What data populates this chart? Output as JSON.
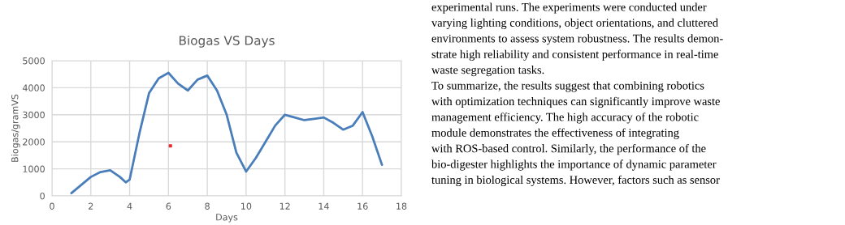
{
  "chart_data": {
    "type": "line",
    "title": "Biogas VS Days",
    "xlabel": "Days",
    "ylabel": "Biogas/gramVS",
    "x": [
      1,
      1.5,
      2,
      2.5,
      3,
      3.5,
      3.8,
      4,
      4.5,
      5,
      5.5,
      6,
      6.5,
      7,
      7.5,
      8,
      8.5,
      9,
      9.5,
      10,
      10.5,
      11,
      11.5,
      12,
      12.5,
      13,
      13.5,
      14,
      14.5,
      15,
      15.5,
      16,
      16.5,
      17
    ],
    "series": [
      {
        "color": "#4a7ebb",
        "values": [
          100,
          400,
          700,
          880,
          950,
          700,
          500,
          600,
          2300,
          3800,
          4350,
          4550,
          4150,
          3900,
          4300,
          4450,
          3900,
          3000,
          1600,
          900,
          1400,
          2000,
          2600,
          3000,
          2900,
          2800,
          2850,
          2900,
          2700,
          2450,
          2600,
          3100,
          2200,
          1150
        ]
      },
      {
        "type": "scatter",
        "marker": "square",
        "color": "#e03030",
        "x": [
          6.1
        ],
        "values": [
          1850
        ]
      }
    ],
    "xlim": [
      0,
      18
    ],
    "xticks": [
      0,
      2,
      4,
      6,
      8,
      10,
      12,
      14,
      16,
      18
    ],
    "ylim": [
      0,
      5000
    ],
    "yticks": [
      0,
      1000,
      2000,
      3000,
      4000,
      5000
    ],
    "grid": true,
    "marker": "none",
    "line_style": "solid",
    "annotations": [
      "experimental runs. The experiments were conducted under",
      "varying lighting conditions, object orientations, and cluttered",
      "environments to assess system robustness. The results demon-",
      "strate high reliability and consistent performance in real-time",
      "waste segregation tasks.",
      "To summarize, the results suggest that combining robotics",
      "with optimization techniques can significantly improve waste",
      "management efficiency. The high accuracy of the robotic",
      "module demonstrates the effectiveness of integrating",
      "with ROS-based control. Similarly, the performance of the",
      "bio-digester highlights the importance of dynamic parameter",
      "tuning in biological systems. However, factors such as sensor"
    ]
  }
}
